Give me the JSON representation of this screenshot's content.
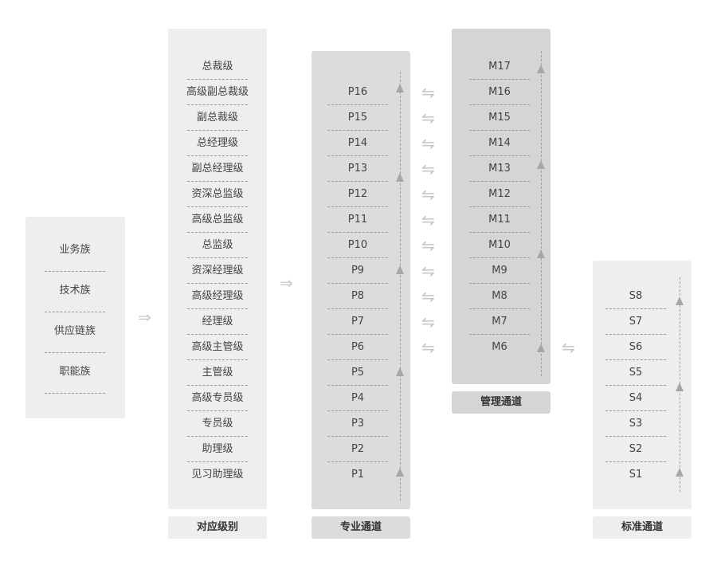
{
  "families": [
    "业务族",
    "技术族",
    "供应链族",
    "职能族"
  ],
  "levels": {
    "title": "对应级别",
    "items": [
      "总裁级",
      "高级副总裁级",
      "副总裁级",
      "总经理级",
      "副总经理级",
      "资深总监级",
      "高级总监级",
      "总监级",
      "资深经理级",
      "高级经理级",
      "经理级",
      "高级主管级",
      "主管级",
      "高级专员级",
      "专员级",
      "助理级",
      "见习助理级"
    ]
  },
  "professional": {
    "title": "专业通道",
    "items": [
      "P16",
      "P15",
      "P14",
      "P13",
      "P12",
      "P11",
      "P10",
      "P9",
      "P8",
      "P7",
      "P6",
      "P5",
      "P4",
      "P3",
      "P2",
      "P1"
    ]
  },
  "management": {
    "title": "管理通道",
    "items": [
      "M17",
      "M16",
      "M15",
      "M14",
      "M13",
      "M12",
      "M11",
      "M10",
      "M9",
      "M8",
      "M7",
      "M6"
    ]
  },
  "standard": {
    "title": "标准通道",
    "items": [
      "S8",
      "S7",
      "S6",
      "S5",
      "S4",
      "S3",
      "S2",
      "S1"
    ]
  },
  "icons": {
    "flow_arrow": "double-right-arrow-icon",
    "exchange_arrow": "exchange-arrows-icon"
  },
  "colors": {
    "light_panel": "#eeeeee",
    "dark_panel": "#dcdcdc",
    "darker_panel": "#d5d5d5",
    "text": "#444444"
  }
}
